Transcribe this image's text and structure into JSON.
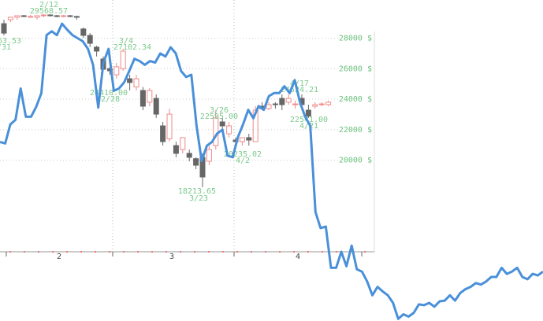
{
  "chart_data": {
    "type": "candlestick",
    "up_color": "#f08a8a",
    "down_color": "#666666",
    "line_color": "#4a90d9",
    "grid": true,
    "ylim": [
      14000,
      30500
    ],
    "yticks": [
      {
        "value": 20000,
        "label": "20000 $"
      },
      {
        "value": 22000,
        "label": "22000 $"
      },
      {
        "value": 24000,
        "label": "24000 $"
      },
      {
        "value": 26000,
        "label": "26000 $"
      },
      {
        "value": 28000,
        "label": "28000 $"
      }
    ],
    "months": [
      "2",
      "3",
      "4"
    ],
    "annotations": [
      "2/12",
      "29568.57",
      "63.53",
      "/31",
      "3/4",
      "27102.34",
      "24410.00",
      "2/28",
      "3/26",
      "22595.00",
      "18213.65",
      "3/23",
      "20235.02",
      "4/2",
      "4/17",
      "24524.21",
      "22541.00",
      "4/21"
    ],
    "candles": [
      [
        28950,
        29210,
        28180,
        28330
      ],
      [
        29210,
        29370,
        29050,
        29370
      ],
      [
        29370,
        29470,
        29210,
        29470
      ],
      [
        29470,
        29520,
        29370,
        29420
      ],
      [
        29420,
        29520,
        29370,
        29420
      ],
      [
        29370,
        29470,
        29210,
        29470
      ],
      [
        29470,
        29570,
        29370,
        29520
      ],
      [
        29520,
        29570,
        29420,
        29470
      ],
      [
        29470,
        29520,
        29370,
        29420
      ],
      [
        29420,
        29520,
        29370,
        29470
      ],
      [
        29470,
        29520,
        29370,
        29420
      ],
      [
        29420,
        29470,
        29210,
        29370
      ],
      [
        28600,
        28700,
        28020,
        28180
      ],
      [
        28180,
        28330,
        27410,
        27660
      ],
      [
        27410,
        27500,
        26800,
        27150
      ],
      [
        26630,
        26800,
        25860,
        25960
      ],
      [
        26000,
        26120,
        25600,
        25860
      ],
      [
        25600,
        26380,
        25340,
        26120
      ],
      [
        26000,
        27300,
        25860,
        27150
      ],
      [
        25340,
        25600,
        24570,
        25090
      ],
      [
        24800,
        25600,
        24570,
        25340
      ],
      [
        24570,
        24800,
        23280,
        23540
      ],
      [
        23800,
        24720,
        23540,
        24570
      ],
      [
        24050,
        24310,
        22770,
        23020
      ],
      [
        22250,
        22510,
        20960,
        21220
      ],
      [
        21400,
        23380,
        21220,
        23020
      ],
      [
        20960,
        21220,
        20190,
        20450
      ],
      [
        20700,
        21480,
        20450,
        21480
      ],
      [
        20450,
        20700,
        19930,
        20190
      ],
      [
        20100,
        20190,
        19410,
        19670
      ],
      [
        20190,
        20450,
        18230,
        18900
      ],
      [
        19930,
        20960,
        19670,
        20700
      ],
      [
        20960,
        23280,
        20700,
        22770
      ],
      [
        22510,
        22770,
        21990,
        22250
      ],
      [
        21730,
        22510,
        21480,
        22250
      ],
      [
        21320,
        21480,
        20960,
        21220
      ],
      [
        21220,
        21480,
        20960,
        21480
      ],
      [
        21480,
        21730,
        20960,
        21320
      ],
      [
        21220,
        23540,
        21220,
        23280
      ],
      [
        23540,
        23800,
        23280,
        23380
      ],
      [
        23380,
        23800,
        23280,
        23640
      ],
      [
        23690,
        23800,
        23380,
        23640
      ],
      [
        24050,
        24310,
        23280,
        23640
      ],
      [
        23800,
        24310,
        23640,
        24050
      ],
      [
        23690,
        23900,
        23380,
        23690
      ],
      [
        24050,
        24310,
        23540,
        23640
      ],
      [
        23280,
        23640,
        22770,
        22900
      ],
      [
        23540,
        23800,
        23380,
        23640
      ],
      [
        23640,
        23800,
        23540,
        23690
      ],
      [
        23640,
        23900,
        23540,
        23800
      ]
    ],
    "line": [
      21200,
      21100,
      22350,
      22650,
      24700,
      22850,
      22850,
      23500,
      24400,
      28200,
      28450,
      28200,
      28950,
      28550,
      28200,
      28000,
      27800,
      27300,
      26250,
      23450,
      26400,
      27300,
      24550,
      24700,
      25100,
      25850,
      26650,
      26500,
      26250,
      26500,
      26400,
      27000,
      26800,
      27400,
      27000,
      25850,
      25450,
      25600,
      22250,
      19950,
      20950,
      21200,
      21750,
      22000,
      20300,
      20200,
      21500,
      22350,
      23300,
      22750,
      23550,
      23300,
      24200,
      24400,
      24400,
      24850,
      24400,
      25250,
      23800,
      22850,
      22250,
      16600,
      15550,
      15650,
      12950,
      12950,
      14000,
      13050,
      14400,
      12850,
      12700,
      12050,
      11150,
      11700,
      11400,
      11150,
      10650,
      9600,
      9900,
      9750,
      10000,
      10550,
      10500,
      10650,
      10400,
      10750,
      10800,
      11150,
      10800,
      11300,
      11550,
      11700,
      11950,
      11850,
      12050,
      12350,
      12350,
      12950,
      12550,
      12700,
      12950,
      12350,
      12200,
      12550,
      12450,
      12700
    ]
  }
}
